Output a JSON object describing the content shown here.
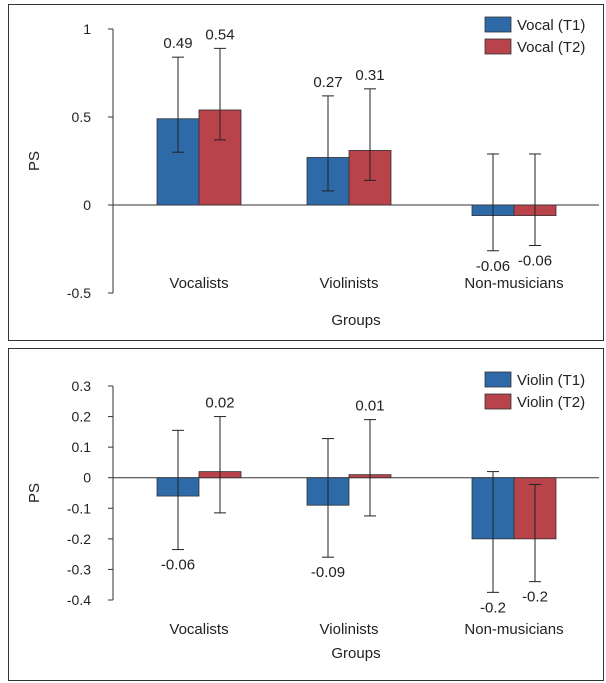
{
  "colors": {
    "t1": "#2e6aa8",
    "t2": "#b8434a",
    "axis": "#333333"
  },
  "chart_data": [
    {
      "type": "bar",
      "categories": [
        "Vocalists",
        "Violinists",
        "Non-musicians"
      ],
      "xlabel": "Groups",
      "ylabel": "PS",
      "ylim": [
        -0.5,
        1
      ],
      "yticks": [
        1,
        0.5,
        0,
        -0.5
      ],
      "ytick_labels": [
        "1",
        "0.5",
        "0",
        "-0.5"
      ],
      "legend_position": "top-right",
      "series": [
        {
          "name": "Vocal (T1)",
          "values": [
            0.49,
            0.27,
            -0.06
          ],
          "value_labels": [
            "0.49",
            "0.27",
            "-0.06"
          ],
          "err_low": [
            0.3,
            0.08,
            -0.26
          ],
          "err_high": [
            0.84,
            0.62,
            0.29
          ]
        },
        {
          "name": "Vocal (T2)",
          "values": [
            0.54,
            0.31,
            -0.06
          ],
          "value_labels": [
            "0.54",
            "0.31",
            "-0.06"
          ],
          "err_low": [
            0.37,
            0.14,
            -0.23
          ],
          "err_high": [
            0.89,
            0.66,
            0.29
          ]
        }
      ]
    },
    {
      "type": "bar",
      "categories": [
        "Vocalists",
        "Violinists",
        "Non-musicians"
      ],
      "xlabel": "Groups",
      "ylabel": "PS",
      "ylim": [
        -0.4,
        0.3
      ],
      "yticks": [
        0.3,
        0.2,
        0.1,
        0,
        -0.1,
        -0.2,
        -0.3,
        -0.4
      ],
      "ytick_labels": [
        "0.3",
        "0.2",
        "0.1",
        "0",
        "-0.1",
        "-0.2",
        "-0.3",
        "-0.4"
      ],
      "legend_position": "top-right",
      "series": [
        {
          "name": "Violin (T1)",
          "values": [
            -0.06,
            -0.09,
            -0.2
          ],
          "value_labels": [
            "-0.06",
            "-0.09",
            "-0.2"
          ],
          "err_low": [
            -0.235,
            -0.26,
            -0.375
          ],
          "err_high": [
            0.155,
            0.128,
            0.02
          ]
        },
        {
          "name": "Violin (T2)",
          "values": [
            0.02,
            0.01,
            -0.2
          ],
          "value_labels": [
            "0.02",
            "0.01",
            "-0.2"
          ],
          "err_low": [
            -0.115,
            -0.125,
            -0.34
          ],
          "err_high": [
            0.2,
            0.19,
            -0.022
          ]
        }
      ]
    }
  ]
}
